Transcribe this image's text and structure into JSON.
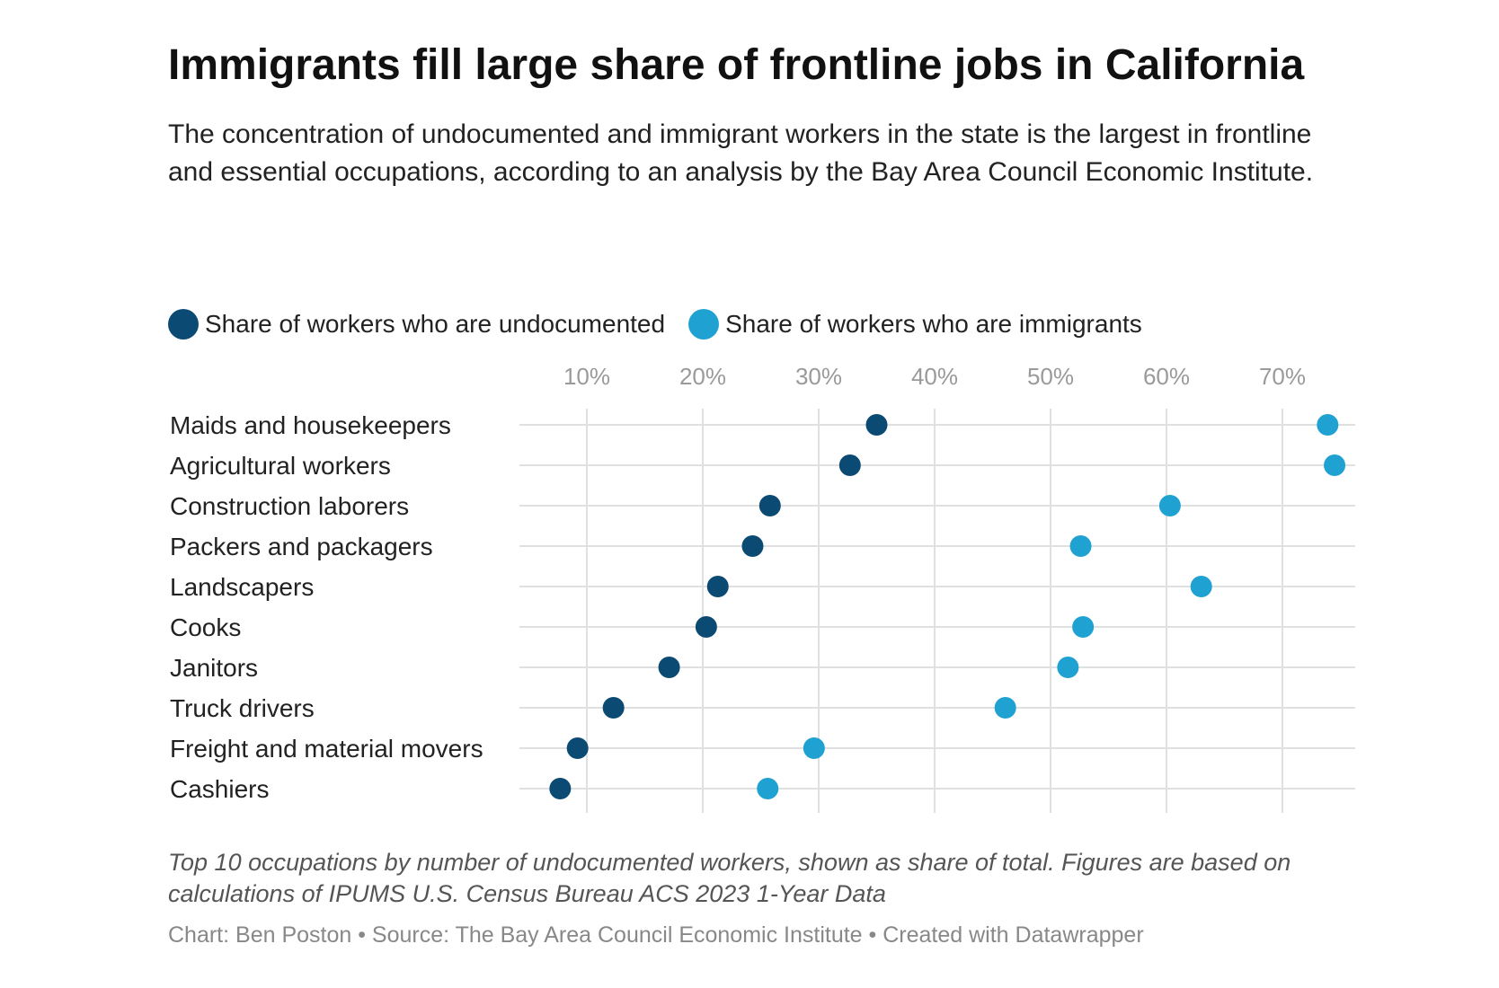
{
  "title": "Immigrants fill large share of frontline jobs in California",
  "subtitle": "The concentration of undocumented and immigrant workers in the state is the largest in frontline and essential occupations, according to an analysis by the Bay Area Council Economic Institute.",
  "legend": {
    "undocumented_label": "Share of workers who are undocumented",
    "immigrants_label": "Share of workers who are immigrants"
  },
  "colors": {
    "undocumented": "#0b4a73",
    "immigrants": "#1fa2d1",
    "grid": "#e0e0e0",
    "tick_label": "#9a9a9a"
  },
  "chart_data": {
    "type": "scatter",
    "categories": [
      "Maids and housekeepers",
      "Agricultural workers",
      "Construction laborers",
      "Packers and packagers",
      "Landscapers",
      "Cooks",
      "Janitors",
      "Truck drivers",
      "Freight and material movers",
      "Cashiers"
    ],
    "series": [
      {
        "name": "Share of workers who are undocumented",
        "values": [
          35,
          32.7,
          25.8,
          24.3,
          21.3,
          20.3,
          17.1,
          12.3,
          9.2,
          7.7
        ]
      },
      {
        "name": "Share of workers who are immigrants",
        "values": [
          73.9,
          74.5,
          60.3,
          52.6,
          63,
          52.8,
          51.5,
          46.1,
          29.6,
          25.6
        ]
      }
    ],
    "xlim": [
      4,
      76
    ],
    "ticks": [
      {
        "value": 10,
        "label": "10%"
      },
      {
        "value": 20,
        "label": "20%"
      },
      {
        "value": 30,
        "label": "30%"
      },
      {
        "value": 40,
        "label": "40%"
      },
      {
        "value": 50,
        "label": "50%"
      },
      {
        "value": 60,
        "label": "60%"
      },
      {
        "value": 70,
        "label": "70%"
      }
    ],
    "grid": true,
    "legend_position": "top-left"
  },
  "notes": "Top 10 occupations by number of undocumented workers, shown as share of total. Figures are based on calculations of IPUMS U.S. Census Bureau ACS 2023 1-Year Data",
  "byline": "Chart: Ben Poston • Source: The Bay Area Council Economic Institute  • Created with Datawrapper"
}
